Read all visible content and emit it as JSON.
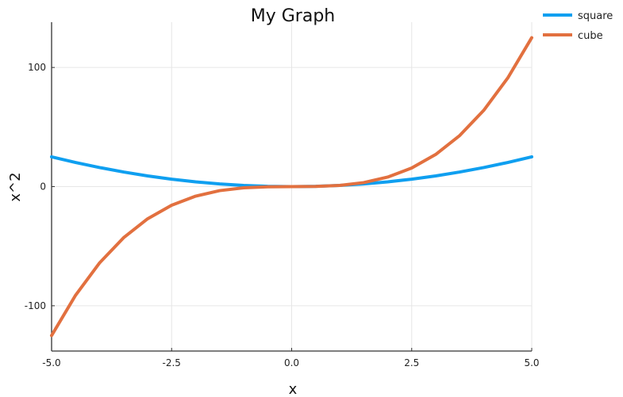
{
  "chart_data": {
    "type": "line",
    "title": "My Graph",
    "xlabel": "x",
    "ylabel": "x^2",
    "xlim": [
      -5,
      5
    ],
    "ylim": [
      -138,
      138
    ],
    "xticks": [
      -5.0,
      -2.5,
      0.0,
      2.5,
      5.0
    ],
    "xtick_labels": [
      "-5.0",
      "-2.5",
      "0.0",
      "2.5",
      "5.0"
    ],
    "yticks": [
      -100,
      0,
      100
    ],
    "ytick_labels": [
      "-100",
      "0",
      "100"
    ],
    "grid": true,
    "legend": "outside-top-right",
    "x": [
      -5.0,
      -4.5,
      -4.0,
      -3.5,
      -3.0,
      -2.5,
      -2.0,
      -1.5,
      -1.0,
      -0.5,
      0.0,
      0.5,
      1.0,
      1.5,
      2.0,
      2.5,
      3.0,
      3.5,
      4.0,
      4.5,
      5.0
    ],
    "series": [
      {
        "name": "square",
        "color": "#0f9ff0",
        "values": [
          25.0,
          20.25,
          16.0,
          12.25,
          9.0,
          6.25,
          4.0,
          2.25,
          1.0,
          0.25,
          0.0,
          0.25,
          1.0,
          2.25,
          4.0,
          6.25,
          9.0,
          12.25,
          16.0,
          20.25,
          25.0
        ]
      },
      {
        "name": "cube",
        "color": "#e2703f",
        "values": [
          -125.0,
          -91.125,
          -64.0,
          -42.875,
          -27.0,
          -15.625,
          -8.0,
          -3.375,
          -1.0,
          -0.125,
          0.0,
          0.125,
          1.0,
          3.375,
          8.0,
          15.625,
          27.0,
          42.875,
          64.0,
          91.125,
          125.0
        ]
      }
    ]
  }
}
